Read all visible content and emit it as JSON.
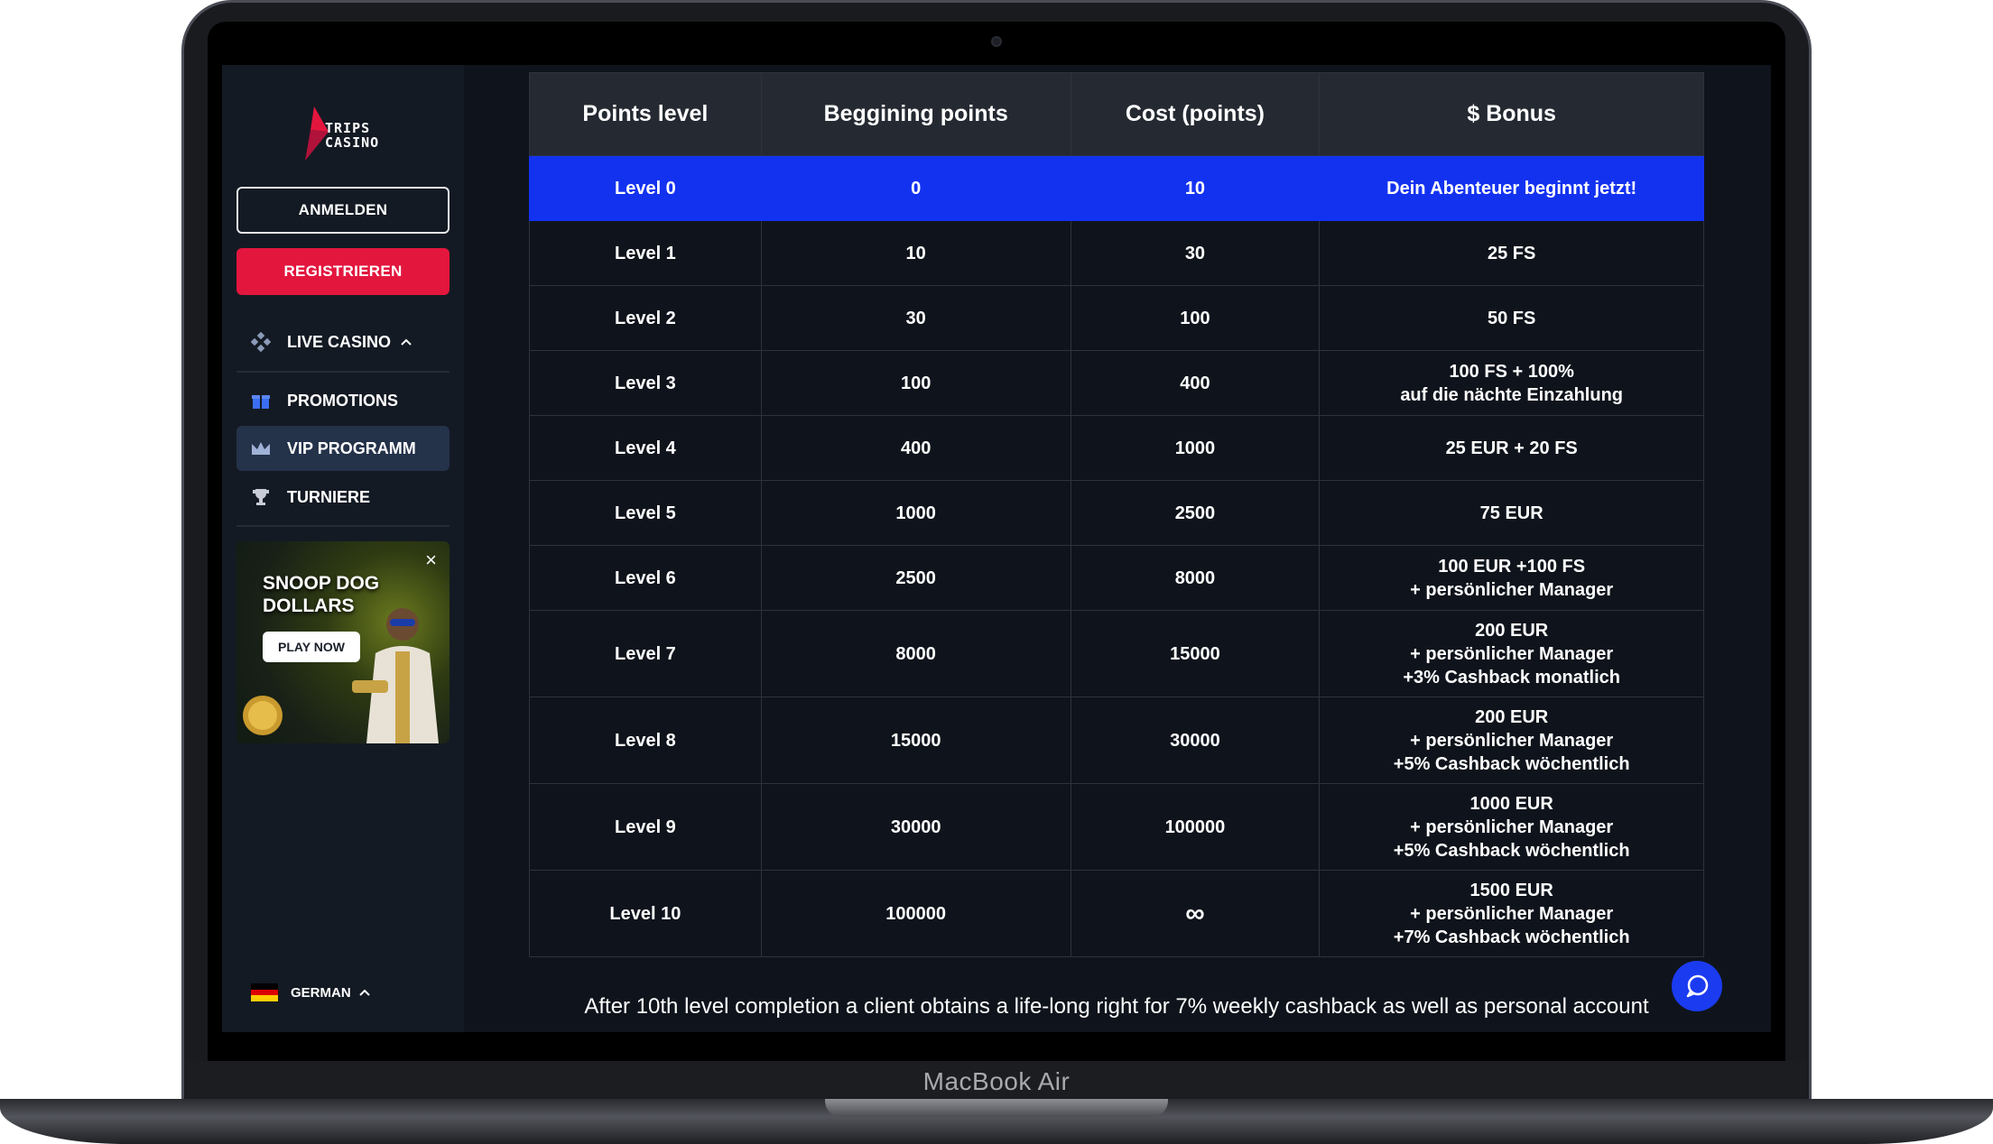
{
  "device": {
    "brand": "MacBook Air"
  },
  "sidebar": {
    "logo_text": [
      "TRIPS",
      "CASINO"
    ],
    "login_label": "ANMELDEN",
    "register_label": "REGISTRIEREN",
    "nav": {
      "live_casino": "LIVE CASINO",
      "promotions": "PROMOTIONS",
      "vip": "VIP PROGRAMM",
      "tournaments": "TURNIERE"
    },
    "promo": {
      "title_line1": "SNOOP DOG",
      "title_line2": "DOLLARS",
      "button": "PLAY NOW",
      "close": "×"
    },
    "language": "GERMAN"
  },
  "table": {
    "headers": [
      "Points level",
      "Beggining points",
      "Cost (points)",
      "$ Bonus"
    ],
    "rows": [
      {
        "level": "Level 0",
        "begin": "0",
        "cost": "10",
        "bonus": [
          "Dein Abenteuer beginnt jetzt!"
        ]
      },
      {
        "level": "Level 1",
        "begin": "10",
        "cost": "30",
        "bonus": [
          "25 FS"
        ]
      },
      {
        "level": "Level 2",
        "begin": "30",
        "cost": "100",
        "bonus": [
          "50 FS"
        ]
      },
      {
        "level": "Level 3",
        "begin": "100",
        "cost": "400",
        "bonus": [
          "100 FS + 100%",
          "auf die nächte Einzahlung"
        ]
      },
      {
        "level": "Level 4",
        "begin": "400",
        "cost": "1000",
        "bonus": [
          "25 EUR + 20 FS"
        ]
      },
      {
        "level": "Level 5",
        "begin": "1000",
        "cost": "2500",
        "bonus": [
          "75 EUR"
        ]
      },
      {
        "level": "Level 6",
        "begin": "2500",
        "cost": "8000",
        "bonus": [
          "100 EUR +100 FS",
          "+ persönlicher Manager"
        ]
      },
      {
        "level": "Level 7",
        "begin": "8000",
        "cost": "15000",
        "bonus": [
          "200 EUR",
          "+ persönlicher Manager",
          "+3% Cashback monatlich"
        ]
      },
      {
        "level": "Level 8",
        "begin": "15000",
        "cost": "30000",
        "bonus": [
          "200 EUR",
          "+ persönlicher Manager",
          "+5% Cashback wöchentlich"
        ]
      },
      {
        "level": "Level 9",
        "begin": "30000",
        "cost": "100000",
        "bonus": [
          "1000 EUR",
          "+ persönlicher Manager",
          "+5% Cashback wöchentlich"
        ]
      },
      {
        "level": "Level 10",
        "begin": "100000",
        "cost": "∞",
        "bonus": [
          "1500 EUR",
          "+ persönlicher Manager",
          "+7% Cashback wöchentlich"
        ]
      }
    ]
  },
  "footer_text": "After 10th level completion a client obtains a life-long right for 7% weekly cashback as well as personal account",
  "colors": {
    "accent_blue": "#1332f0",
    "register_red": "#e3163e",
    "background": "#0f141c"
  }
}
